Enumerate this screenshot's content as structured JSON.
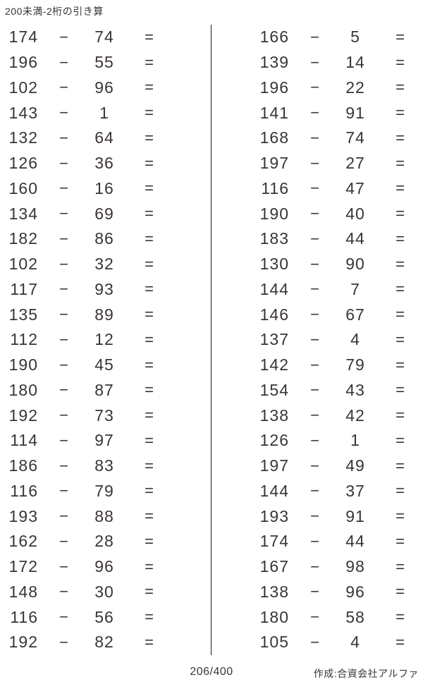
{
  "title": "200未満-2桁の引き算",
  "minus_sign": "−",
  "equals_sign": "=",
  "footer": {
    "page_indicator": "206/400",
    "credit": "作成:合資会社アルファ"
  },
  "colors": {
    "text": "#3a3533",
    "divider": "#231e1b",
    "background": "#ffffff"
  },
  "problems": {
    "left": [
      {
        "minuend": "174",
        "subtrahend": "74"
      },
      {
        "minuend": "196",
        "subtrahend": "55"
      },
      {
        "minuend": "102",
        "subtrahend": "96"
      },
      {
        "minuend": "143",
        "subtrahend": "1"
      },
      {
        "minuend": "132",
        "subtrahend": "64"
      },
      {
        "minuend": "126",
        "subtrahend": "36"
      },
      {
        "minuend": "160",
        "subtrahend": "16"
      },
      {
        "minuend": "134",
        "subtrahend": "69"
      },
      {
        "minuend": "182",
        "subtrahend": "86"
      },
      {
        "minuend": "102",
        "subtrahend": "32"
      },
      {
        "minuend": "117",
        "subtrahend": "93"
      },
      {
        "minuend": "135",
        "subtrahend": "89"
      },
      {
        "minuend": "112",
        "subtrahend": "12"
      },
      {
        "minuend": "190",
        "subtrahend": "45"
      },
      {
        "minuend": "180",
        "subtrahend": "87"
      },
      {
        "minuend": "192",
        "subtrahend": "73"
      },
      {
        "minuend": "114",
        "subtrahend": "97"
      },
      {
        "minuend": "186",
        "subtrahend": "83"
      },
      {
        "minuend": "116",
        "subtrahend": "79"
      },
      {
        "minuend": "193",
        "subtrahend": "88"
      },
      {
        "minuend": "162",
        "subtrahend": "28"
      },
      {
        "minuend": "172",
        "subtrahend": "96"
      },
      {
        "minuend": "148",
        "subtrahend": "30"
      },
      {
        "minuend": "116",
        "subtrahend": "56"
      },
      {
        "minuend": "192",
        "subtrahend": "82"
      }
    ],
    "right": [
      {
        "minuend": "166",
        "subtrahend": "5"
      },
      {
        "minuend": "139",
        "subtrahend": "14"
      },
      {
        "minuend": "196",
        "subtrahend": "22"
      },
      {
        "minuend": "141",
        "subtrahend": "91"
      },
      {
        "minuend": "168",
        "subtrahend": "74"
      },
      {
        "minuend": "197",
        "subtrahend": "27"
      },
      {
        "minuend": "116",
        "subtrahend": "47"
      },
      {
        "minuend": "190",
        "subtrahend": "40"
      },
      {
        "minuend": "183",
        "subtrahend": "44"
      },
      {
        "minuend": "130",
        "subtrahend": "90"
      },
      {
        "minuend": "144",
        "subtrahend": "7"
      },
      {
        "minuend": "146",
        "subtrahend": "67"
      },
      {
        "minuend": "137",
        "subtrahend": "4"
      },
      {
        "minuend": "142",
        "subtrahend": "79"
      },
      {
        "minuend": "154",
        "subtrahend": "43"
      },
      {
        "minuend": "138",
        "subtrahend": "42"
      },
      {
        "minuend": "126",
        "subtrahend": "1"
      },
      {
        "minuend": "197",
        "subtrahend": "49"
      },
      {
        "minuend": "144",
        "subtrahend": "37"
      },
      {
        "minuend": "193",
        "subtrahend": "91"
      },
      {
        "minuend": "174",
        "subtrahend": "44"
      },
      {
        "minuend": "167",
        "subtrahend": "98"
      },
      {
        "minuend": "138",
        "subtrahend": "96"
      },
      {
        "minuend": "180",
        "subtrahend": "58"
      },
      {
        "minuend": "105",
        "subtrahend": "4"
      }
    ]
  }
}
